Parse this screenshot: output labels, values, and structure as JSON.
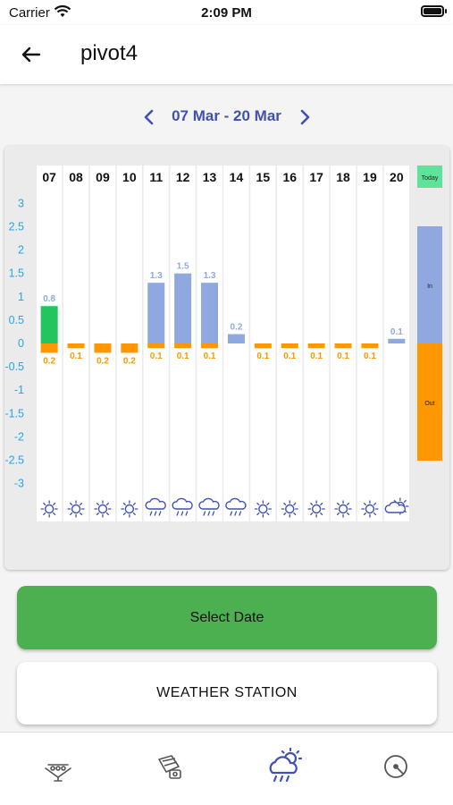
{
  "status_bar": {
    "carrier": "Carrier",
    "time": "2:09 PM"
  },
  "app_bar": {
    "title": "pivot4"
  },
  "date_nav": {
    "range": "07 Mar - 20 Mar"
  },
  "colors": {
    "in": "#8fa8e0",
    "in_today": "#22c55e",
    "out": "#ff9800",
    "in_label": "#8fa8e0",
    "out_label": "#ff9800",
    "axis": "#29a3e6",
    "accent": "#3f51b5",
    "primary_button": "#4caf50"
  },
  "chart_data": {
    "type": "bar",
    "categories": [
      "07",
      "08",
      "09",
      "10",
      "11",
      "12",
      "13",
      "14",
      "15",
      "16",
      "17",
      "18",
      "19",
      "20"
    ],
    "series": [
      {
        "name": "In",
        "values": [
          0.8,
          null,
          null,
          null,
          1.3,
          1.5,
          1.3,
          0.2,
          null,
          null,
          null,
          null,
          null,
          0.1
        ],
        "labels": [
          "0.8",
          "",
          "",
          "",
          "1.3",
          "1.5",
          "1.3",
          "0.2",
          "",
          "",
          "",
          "",
          "",
          "0.1"
        ]
      },
      {
        "name": "Out",
        "values": [
          -0.2,
          -0.1,
          -0.2,
          -0.2,
          -0.1,
          -0.1,
          -0.1,
          null,
          -0.1,
          -0.1,
          -0.1,
          -0.1,
          -0.1,
          null
        ],
        "labels": [
          "0.2",
          "0.1",
          "0.2",
          "0.2",
          "0.1",
          "0.1",
          "0.1",
          "",
          "0.1",
          "0.1",
          "0.1",
          "0.1",
          "0.1",
          ""
        ]
      }
    ],
    "today_index": 0,
    "ylim": [
      -3,
      3
    ],
    "yticks": [
      "3",
      "2.5",
      "2",
      "1.5",
      "1",
      "0.5",
      "0",
      "-0.5",
      "-1",
      "-1.5",
      "-2",
      "-2.5",
      "-3"
    ],
    "weather": [
      "sun",
      "sun",
      "sun",
      "sun",
      "rain",
      "rain",
      "rain",
      "rain",
      "sun",
      "sun",
      "sun",
      "sun",
      "sun",
      "cloud-sun"
    ],
    "legend": {
      "today": "Today",
      "in": "In",
      "out": "Out"
    }
  },
  "buttons": {
    "select_date": "Select Date",
    "weather_station": "WEATHER STATION"
  },
  "bottom_nav": [
    "pivot-icon",
    "station-icon",
    "weather-icon",
    "gauge-icon"
  ]
}
